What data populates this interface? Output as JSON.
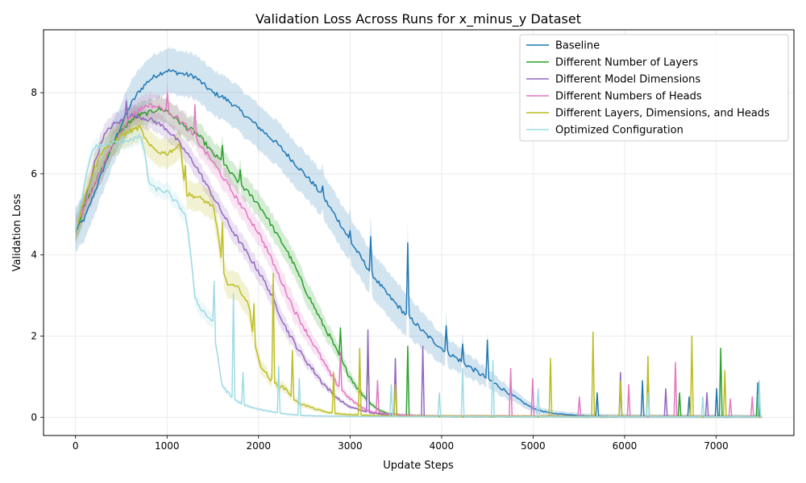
{
  "chart_data": {
    "type": "line",
    "title": "Validation Loss Across Runs for x_minus_y Dataset",
    "xlabel": "Update Steps",
    "ylabel": "Validation Loss",
    "xlim": [
      -350,
      7850
    ],
    "ylim": [
      -0.45,
      9.55
    ],
    "xticks": [
      0,
      1000,
      2000,
      3000,
      4000,
      5000,
      6000,
      7000
    ],
    "yticks": [
      0,
      2,
      4,
      6,
      8
    ],
    "grid": true,
    "legend_position": "top-right",
    "series": [
      {
        "name": "Baseline",
        "color": "#1f77b4",
        "points": [
          [
            0,
            4.62
          ],
          [
            100,
            4.9
          ],
          [
            200,
            5.5
          ],
          [
            300,
            6.1
          ],
          [
            400,
            6.7
          ],
          [
            500,
            7.2
          ],
          [
            600,
            7.7
          ],
          [
            700,
            8.05
          ],
          [
            800,
            8.3
          ],
          [
            900,
            8.45
          ],
          [
            1000,
            8.55
          ],
          [
            1100,
            8.5
          ],
          [
            1200,
            8.45
          ],
          [
            1300,
            8.4
          ],
          [
            1400,
            8.2
          ],
          [
            1500,
            8.0
          ],
          [
            1600,
            7.9
          ],
          [
            1700,
            7.75
          ],
          [
            1800,
            7.55
          ],
          [
            1900,
            7.35
          ],
          [
            2000,
            7.15
          ],
          [
            2100,
            6.95
          ],
          [
            2200,
            6.75
          ],
          [
            2300,
            6.5
          ],
          [
            2400,
            6.25
          ],
          [
            2500,
            6.0
          ],
          [
            2600,
            5.75
          ],
          [
            2700,
            5.45
          ],
          [
            2800,
            5.1
          ],
          [
            2900,
            4.75
          ],
          [
            3000,
            4.35
          ],
          [
            3100,
            4.0
          ],
          [
            3200,
            3.65
          ],
          [
            3300,
            3.35
          ],
          [
            3400,
            3.05
          ],
          [
            3500,
            2.8
          ],
          [
            3600,
            2.55
          ],
          [
            3700,
            2.35
          ],
          [
            3800,
            2.1
          ],
          [
            3900,
            1.9
          ],
          [
            4000,
            1.7
          ],
          [
            4100,
            1.55
          ],
          [
            4200,
            1.4
          ],
          [
            4300,
            1.25
          ],
          [
            4400,
            1.1
          ],
          [
            4500,
            0.95
          ],
          [
            4600,
            0.8
          ],
          [
            4700,
            0.65
          ],
          [
            4800,
            0.5
          ],
          [
            4900,
            0.35
          ],
          [
            5000,
            0.22
          ],
          [
            5100,
            0.15
          ],
          [
            5200,
            0.1
          ],
          [
            5400,
            0.06
          ],
          [
            5600,
            0.03
          ],
          [
            6000,
            0.02
          ],
          [
            7000,
            0.01
          ],
          [
            7500,
            0.01
          ]
        ],
        "band": 0.55,
        "spikes": [
          [
            2700,
            5.7
          ],
          [
            3000,
            4.6
          ],
          [
            3230,
            4.45
          ],
          [
            3630,
            4.3
          ],
          [
            4050,
            2.25
          ],
          [
            4230,
            1.8
          ],
          [
            4500,
            1.9
          ],
          [
            5700,
            0.6
          ],
          [
            6200,
            0.9
          ],
          [
            6700,
            0.5
          ],
          [
            7000,
            0.7
          ],
          [
            7460,
            0.85
          ]
        ]
      },
      {
        "name": "Different Number of Layers",
        "color": "#2ca02c",
        "points": [
          [
            0,
            4.62
          ],
          [
            100,
            5.2
          ],
          [
            200,
            5.7
          ],
          [
            300,
            6.2
          ],
          [
            400,
            6.7
          ],
          [
            500,
            7.05
          ],
          [
            600,
            7.3
          ],
          [
            700,
            7.45
          ],
          [
            800,
            7.5
          ],
          [
            900,
            7.6
          ],
          [
            1000,
            7.55
          ],
          [
            1100,
            7.35
          ],
          [
            1200,
            7.15
          ],
          [
            1300,
            7.05
          ],
          [
            1400,
            6.8
          ],
          [
            1500,
            6.5
          ],
          [
            1600,
            6.3
          ],
          [
            1700,
            6.0
          ],
          [
            1800,
            5.75
          ],
          [
            1900,
            5.5
          ],
          [
            2000,
            5.25
          ],
          [
            2100,
            4.9
          ],
          [
            2200,
            4.5
          ],
          [
            2300,
            4.15
          ],
          [
            2400,
            3.7
          ],
          [
            2500,
            3.2
          ],
          [
            2600,
            2.75
          ],
          [
            2700,
            2.3
          ],
          [
            2800,
            1.9
          ],
          [
            2900,
            1.4
          ],
          [
            3000,
            1.0
          ],
          [
            3100,
            0.65
          ],
          [
            3200,
            0.4
          ],
          [
            3300,
            0.2
          ],
          [
            3400,
            0.1
          ],
          [
            3600,
            0.04
          ],
          [
            4000,
            0.02
          ],
          [
            7500,
            0.01
          ]
        ],
        "band": 0.3,
        "spikes": [
          [
            1600,
            6.7
          ],
          [
            1800,
            6.1
          ],
          [
            2900,
            2.2
          ],
          [
            3200,
            1.7
          ],
          [
            3630,
            1.75
          ],
          [
            5950,
            0.75
          ],
          [
            6250,
            1.1
          ],
          [
            6600,
            0.6
          ],
          [
            7050,
            1.7
          ],
          [
            7450,
            0.55
          ]
        ]
      },
      {
        "name": "Different Model Dimensions",
        "color": "#9467bd",
        "points": [
          [
            0,
            4.62
          ],
          [
            100,
            5.3
          ],
          [
            200,
            6.2
          ],
          [
            300,
            6.9
          ],
          [
            400,
            7.2
          ],
          [
            500,
            7.3
          ],
          [
            600,
            7.45
          ],
          [
            700,
            7.4
          ],
          [
            800,
            7.35
          ],
          [
            900,
            7.25
          ],
          [
            1000,
            7.1
          ],
          [
            1100,
            6.85
          ],
          [
            1200,
            6.55
          ],
          [
            1300,
            6.25
          ],
          [
            1400,
            5.85
          ],
          [
            1500,
            5.45
          ],
          [
            1600,
            5.05
          ],
          [
            1700,
            4.65
          ],
          [
            1800,
            4.3
          ],
          [
            1900,
            3.95
          ],
          [
            2000,
            3.6
          ],
          [
            2100,
            3.2
          ],
          [
            2200,
            2.7
          ],
          [
            2300,
            2.2
          ],
          [
            2400,
            1.8
          ],
          [
            2500,
            1.45
          ],
          [
            2600,
            1.15
          ],
          [
            2700,
            0.85
          ],
          [
            2800,
            0.6
          ],
          [
            2900,
            0.4
          ],
          [
            3000,
            0.25
          ],
          [
            3200,
            0.12
          ],
          [
            3400,
            0.06
          ],
          [
            3800,
            0.03
          ],
          [
            7500,
            0.01
          ]
        ],
        "band": 0.25,
        "spikes": [
          [
            560,
            7.8
          ],
          [
            3200,
            2.15
          ],
          [
            3490,
            1.45
          ],
          [
            3800,
            1.75
          ],
          [
            5950,
            1.1
          ],
          [
            6450,
            0.7
          ],
          [
            6900,
            0.6
          ]
        ]
      },
      {
        "name": "Different Numbers of Heads",
        "color": "#e377c2",
        "points": [
          [
            0,
            4.62
          ],
          [
            100,
            5.2
          ],
          [
            200,
            5.7
          ],
          [
            300,
            6.2
          ],
          [
            400,
            6.7
          ],
          [
            500,
            7.05
          ],
          [
            600,
            7.4
          ],
          [
            700,
            7.6
          ],
          [
            800,
            7.7
          ],
          [
            900,
            7.65
          ],
          [
            1000,
            7.55
          ],
          [
            1100,
            7.4
          ],
          [
            1200,
            7.2
          ],
          [
            1300,
            6.9
          ],
          [
            1400,
            6.6
          ],
          [
            1500,
            6.3
          ],
          [
            1600,
            5.95
          ],
          [
            1700,
            5.6
          ],
          [
            1800,
            5.25
          ],
          [
            1900,
            4.9
          ],
          [
            2000,
            4.55
          ],
          [
            2100,
            4.1
          ],
          [
            2200,
            3.6
          ],
          [
            2300,
            3.1
          ],
          [
            2400,
            2.6
          ],
          [
            2500,
            2.2
          ],
          [
            2600,
            1.8
          ],
          [
            2700,
            1.4
          ],
          [
            2800,
            1.0
          ],
          [
            2900,
            0.7
          ],
          [
            3000,
            0.45
          ],
          [
            3100,
            0.28
          ],
          [
            3200,
            0.15
          ],
          [
            3400,
            0.08
          ],
          [
            3800,
            0.03
          ],
          [
            7500,
            0.01
          ]
        ],
        "band": 0.3,
        "spikes": [
          [
            1000,
            8.0
          ],
          [
            1300,
            7.7
          ],
          [
            2900,
            1.6
          ],
          [
            3300,
            0.9
          ],
          [
            4750,
            1.2
          ],
          [
            5000,
            0.95
          ],
          [
            5500,
            0.5
          ],
          [
            6050,
            0.8
          ],
          [
            6550,
            1.35
          ],
          [
            7150,
            0.45
          ],
          [
            7400,
            0.5
          ]
        ]
      },
      {
        "name": "Different Layers, Dimensions, and Heads",
        "color": "#bcbd22",
        "points": [
          [
            0,
            4.62
          ],
          [
            100,
            5.4
          ],
          [
            200,
            6.1
          ],
          [
            300,
            6.6
          ],
          [
            400,
            6.75
          ],
          [
            500,
            6.95
          ],
          [
            600,
            7.05
          ],
          [
            700,
            7.15
          ],
          [
            800,
            6.7
          ],
          [
            900,
            6.55
          ],
          [
            1000,
            6.5
          ],
          [
            1100,
            6.65
          ],
          [
            1150,
            6.7
          ],
          [
            1200,
            5.5
          ],
          [
            1300,
            5.45
          ],
          [
            1400,
            5.35
          ],
          [
            1500,
            5.2
          ],
          [
            1550,
            4.6
          ],
          [
            1600,
            3.8
          ],
          [
            1650,
            3.3
          ],
          [
            1700,
            3.25
          ],
          [
            1800,
            3.15
          ],
          [
            1900,
            2.7
          ],
          [
            1950,
            1.9
          ],
          [
            2000,
            1.4
          ],
          [
            2100,
            1.0
          ],
          [
            2200,
            0.8
          ],
          [
            2300,
            0.7
          ],
          [
            2400,
            0.4
          ],
          [
            2500,
            0.3
          ],
          [
            2600,
            0.22
          ],
          [
            2700,
            0.15
          ],
          [
            2800,
            0.1
          ],
          [
            3000,
            0.06
          ],
          [
            3500,
            0.03
          ],
          [
            7500,
            0.01
          ]
        ],
        "band": 0.35,
        "spikes": [
          [
            1200,
            6.2
          ],
          [
            1600,
            4.8
          ],
          [
            1950,
            2.8
          ],
          [
            2160,
            3.55
          ],
          [
            2370,
            1.65
          ],
          [
            2820,
            1.1
          ],
          [
            3100,
            1.7
          ],
          [
            3500,
            0.8
          ],
          [
            5190,
            1.45
          ],
          [
            5660,
            2.1
          ],
          [
            5950,
            0.9
          ],
          [
            6250,
            1.5
          ],
          [
            6730,
            2.0
          ],
          [
            7100,
            1.15
          ]
        ]
      },
      {
        "name": "Optimized Configuration",
        "color": "#9edae5",
        "points": [
          [
            0,
            4.62
          ],
          [
            80,
            5.5
          ],
          [
            150,
            6.3
          ],
          [
            200,
            6.65
          ],
          [
            300,
            6.7
          ],
          [
            400,
            6.75
          ],
          [
            500,
            6.8
          ],
          [
            600,
            6.85
          ],
          [
            700,
            6.9
          ],
          [
            750,
            6.6
          ],
          [
            800,
            5.8
          ],
          [
            850,
            5.65
          ],
          [
            1000,
            5.55
          ],
          [
            1150,
            5.15
          ],
          [
            1200,
            5.0
          ],
          [
            1250,
            4.2
          ],
          [
            1300,
            3.0
          ],
          [
            1350,
            2.75
          ],
          [
            1400,
            2.6
          ],
          [
            1500,
            2.35
          ],
          [
            1550,
            1.5
          ],
          [
            1600,
            0.8
          ],
          [
            1700,
            0.5
          ],
          [
            1800,
            0.35
          ],
          [
            1900,
            0.25
          ],
          [
            2000,
            0.2
          ],
          [
            2100,
            0.15
          ],
          [
            2300,
            0.08
          ],
          [
            2500,
            0.04
          ],
          [
            3000,
            0.02
          ],
          [
            7500,
            0.01
          ]
        ],
        "band": 0.2,
        "spikes": [
          [
            720,
            6.9
          ],
          [
            1520,
            3.35
          ],
          [
            1720,
            3.05
          ],
          [
            1830,
            1.1
          ],
          [
            2220,
            1.25
          ],
          [
            2450,
            0.95
          ],
          [
            3450,
            0.8
          ],
          [
            3980,
            0.6
          ],
          [
            4230,
            1.2
          ],
          [
            4560,
            1.4
          ],
          [
            5060,
            0.7
          ],
          [
            6250,
            0.6
          ],
          [
            6850,
            0.5
          ],
          [
            7470,
            0.9
          ]
        ]
      }
    ]
  }
}
